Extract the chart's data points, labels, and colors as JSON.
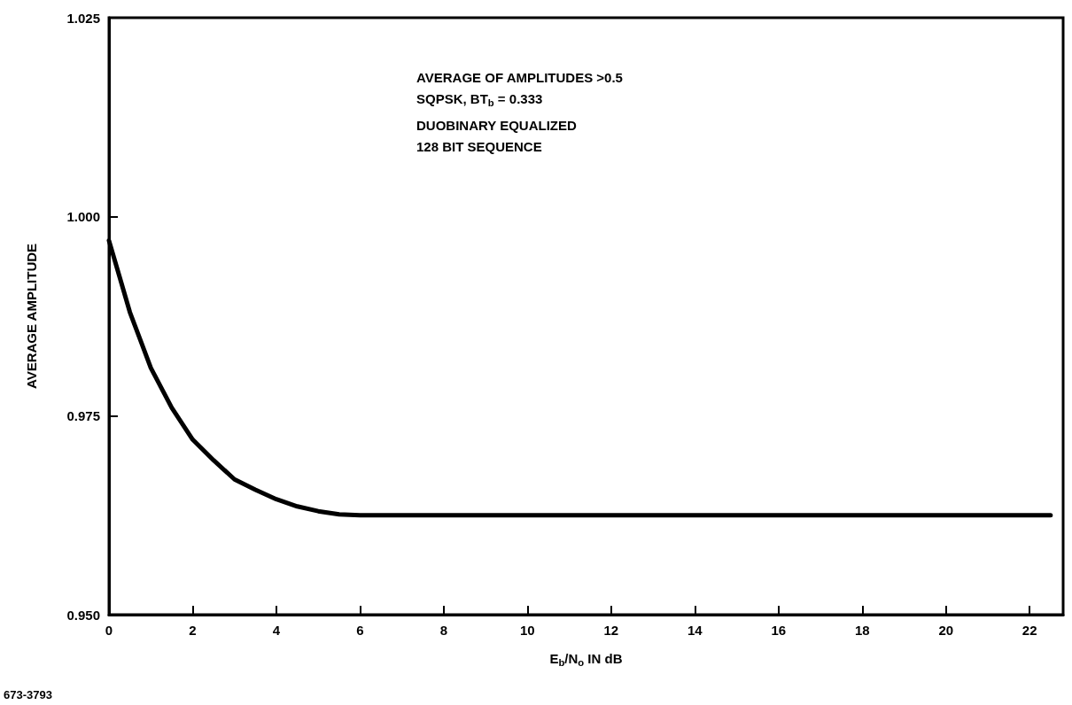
{
  "chart_data": {
    "type": "line",
    "xlabel": "E$_{b}$/N$_{o}$ IN dB",
    "ylabel": "AVERAGE AMPLITUDE",
    "x": [
      0,
      0.25,
      0.5,
      0.75,
      1,
      1.5,
      2,
      2.5,
      3,
      3.5,
      4,
      4.5,
      5,
      5.5,
      6,
      8,
      10,
      14,
      18,
      22.5
    ],
    "series": [
      {
        "color": "#000000",
        "values": [
          0.997,
          0.9925,
          0.988,
          0.9845,
          0.981,
          0.976,
          0.972,
          0.9694,
          0.967,
          0.9657,
          0.9645,
          0.9636,
          0.963,
          0.9626,
          0.9625,
          0.9625,
          0.9625,
          0.9625,
          0.9625,
          0.9625
        ]
      }
    ],
    "xlim": [
      0,
      22.8
    ],
    "xticks": [
      0,
      2,
      4,
      6,
      8,
      10,
      12,
      14,
      16,
      18,
      20,
      22
    ],
    "ylim": [
      0.95,
      1.025
    ],
    "yticks": [
      {
        "value": 0.95,
        "label": "0.950"
      },
      {
        "value": 0.975,
        "label": "0.975"
      },
      {
        "value": 1.0,
        "label": "1.000"
      },
      {
        "value": 1.025,
        "label": "1.025"
      }
    ],
    "grid": false,
    "marker": "none",
    "line_style": "solid",
    "annotations": [
      "AVERAGE OF AMPLITUDES >0.5",
      "SQPSK, BT$_{b}$ = 0.333",
      "DUOBINARY EQUALIZED",
      "128 BIT SEQUENCE",
      "673-3793"
    ]
  }
}
